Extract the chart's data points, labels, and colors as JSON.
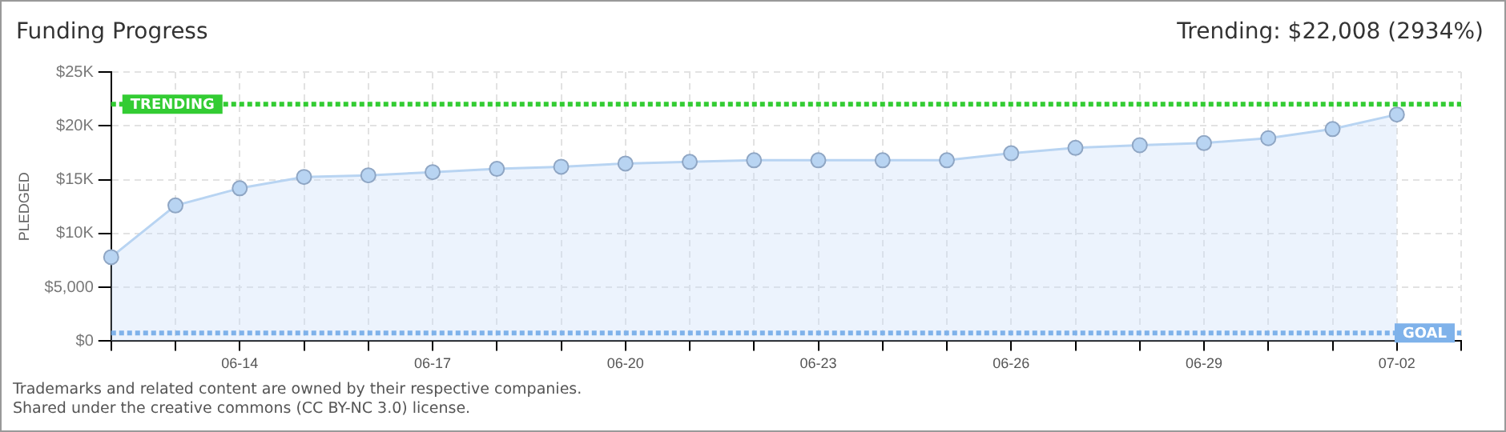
{
  "chart_data": {
    "type": "area",
    "title": "Funding Progress",
    "subtitle": "Trending: $22,008 (2934%)",
    "ylabel": "PLEDGED",
    "categories": [
      null,
      null,
      "06-14",
      null,
      null,
      "06-17",
      null,
      null,
      "06-20",
      null,
      null,
      "06-23",
      null,
      null,
      "06-26",
      null,
      null,
      "06-29",
      null,
      null,
      "07-02",
      null
    ],
    "series": [
      {
        "color": "#b8d4f2",
        "values": [
          7800,
          12600,
          14200,
          15250,
          15400,
          15700,
          16000,
          16200,
          16500,
          16650,
          16800,
          16800,
          16800,
          16800,
          17450,
          17950,
          18200,
          18400,
          18850,
          19700,
          21050,
          null
        ]
      }
    ],
    "ylim": [
      0,
      25000
    ],
    "yticks": [
      {
        "value": 0,
        "label": "$0"
      },
      {
        "value": 5000,
        "label": "$5,000"
      },
      {
        "value": 10000,
        "label": "$10K"
      },
      {
        "value": 15000,
        "label": "$15K"
      },
      {
        "value": 20000,
        "label": "$20K"
      },
      {
        "value": 25000,
        "label": "$25K"
      }
    ],
    "ref_lines": [
      {
        "axis": "y",
        "value": 22008,
        "label": "TRENDING",
        "color": "#33cc33",
        "line_style": "dotted"
      },
      {
        "axis": "y",
        "value": 750,
        "label": "GOAL",
        "color": "#7fb2ea",
        "line_style": "dotted"
      }
    ],
    "grid": true,
    "legend": false,
    "marker": "circle",
    "line_style": "solid",
    "annotations": [
      "Trademarks and related content are owned by their respective companies.",
      "Shared under the creative commons (CC BY-NC 3.0) license."
    ]
  }
}
